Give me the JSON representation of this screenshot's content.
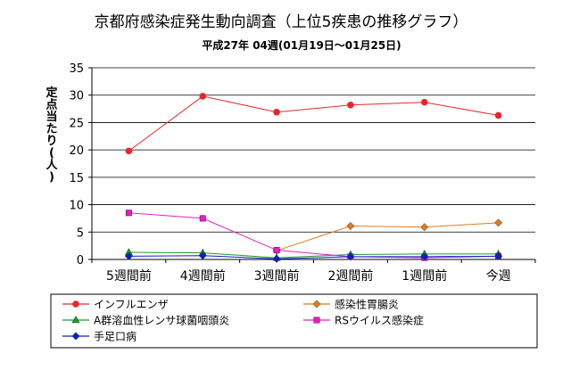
{
  "chart_data": {
    "type": "line",
    "title": "京都府感染症発生動向調査（上位5疾患の推移グラフ）",
    "subtitle": "平成27年 04週(01月19日〜01月25日)",
    "ylabel": "定点当たり(人)",
    "xlabel": "",
    "categories": [
      "5週間前",
      "4週間前",
      "3週間前",
      "2週間前",
      "1週間前",
      "今週"
    ],
    "ylim": [
      0,
      35
    ],
    "yticks": [
      0,
      5,
      10,
      15,
      20,
      25,
      30,
      35
    ],
    "grid": true,
    "legend_position": "bottom",
    "series": [
      {
        "name": "インフルエンザ",
        "color": "#e8262a",
        "marker": "circle",
        "values": [
          19.8,
          29.8,
          26.9,
          28.2,
          28.7,
          26.3
        ]
      },
      {
        "name": "感染性胃腸炎",
        "color": "#e07b1d",
        "marker": "diamond",
        "values": [
          null,
          null,
          1.6,
          6.1,
          5.9,
          6.7
        ]
      },
      {
        "name": "A群溶血性レンサ球菌咽頭炎",
        "color": "#1f9a2a",
        "marker": "triangle",
        "values": [
          1.3,
          1.2,
          0.3,
          0.9,
          1.0,
          1.0
        ]
      },
      {
        "name": "RSウイルス感染症",
        "color": "#e020c0",
        "marker": "square",
        "values": [
          8.5,
          7.5,
          1.7,
          0.5,
          0.3,
          0.6
        ]
      },
      {
        "name": "手足口病",
        "color": "#0a1fc8",
        "marker": "diamond",
        "values": [
          0.6,
          0.7,
          0.1,
          0.5,
          0.5,
          0.6
        ]
      }
    ]
  }
}
